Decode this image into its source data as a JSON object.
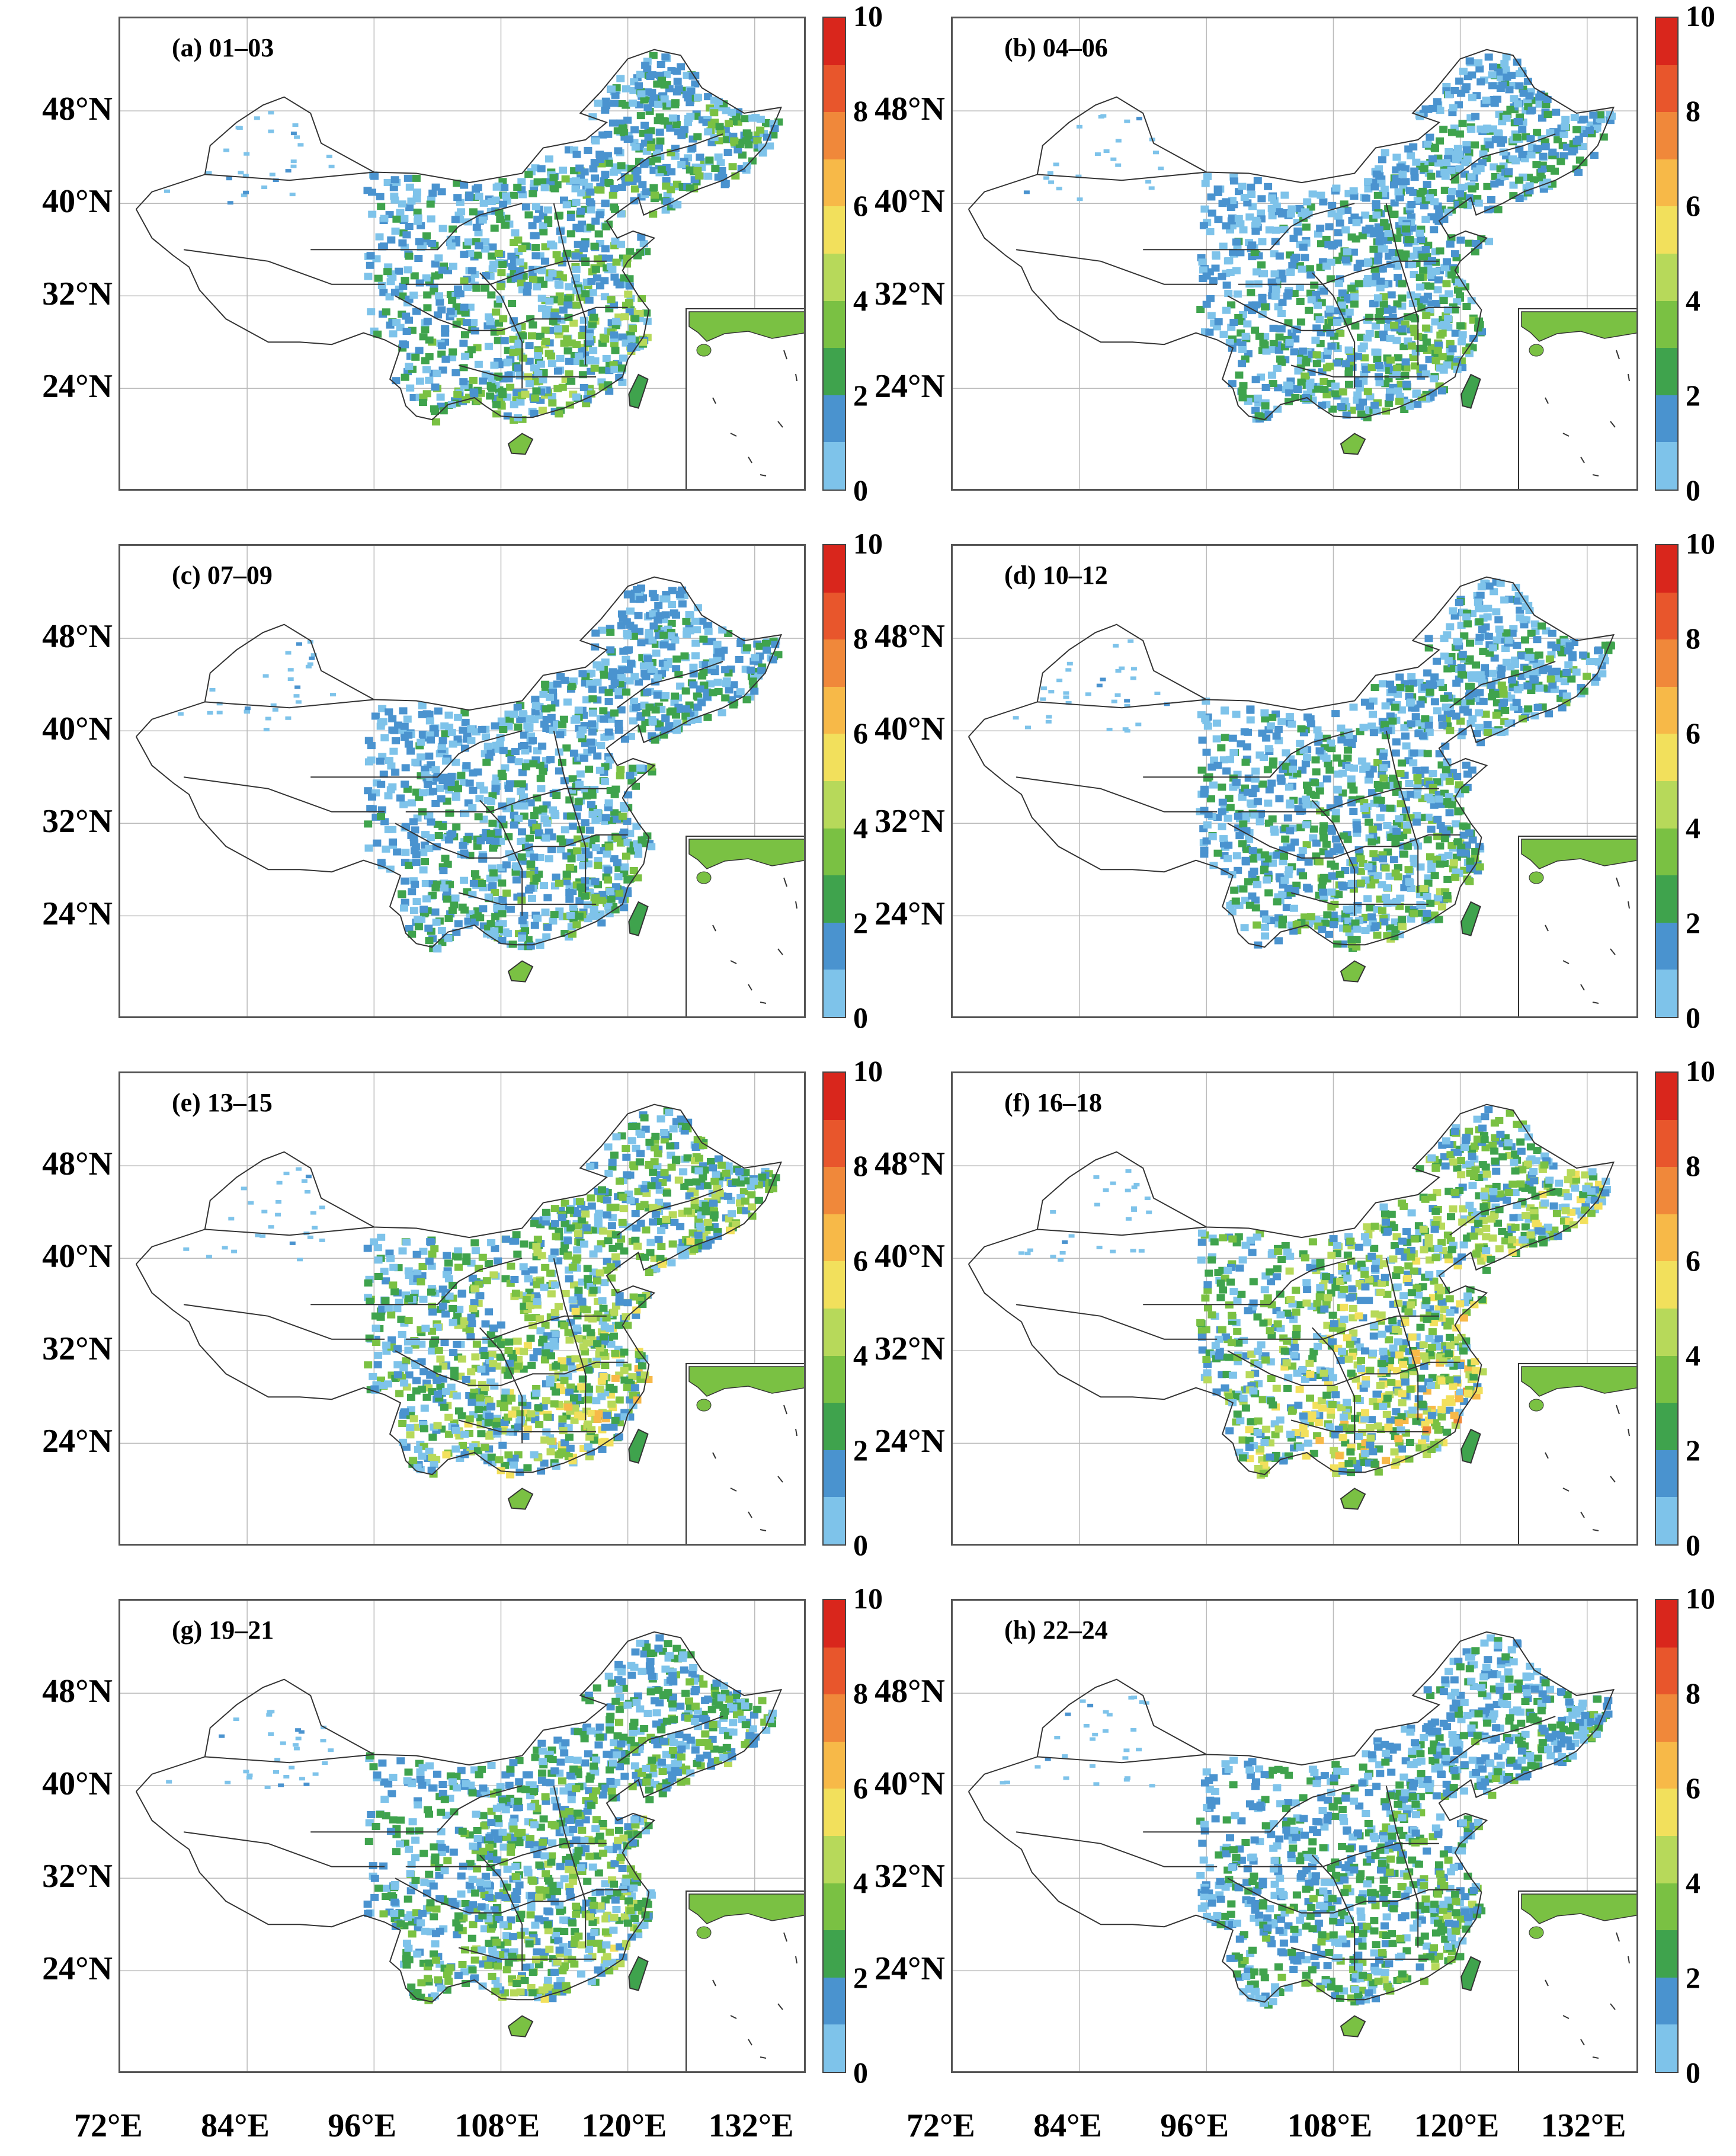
{
  "chart_data": {
    "type": "heatmap",
    "colorbar": {
      "ticks": [
        "0",
        "2",
        "4",
        "6",
        "8",
        "10"
      ],
      "range": [
        0,
        10
      ],
      "colors": [
        "#7ec3ea",
        "#4a93cf",
        "#3fa34d",
        "#7ac143",
        "#b7d95a",
        "#f2e05c",
        "#f7b948",
        "#f0883a",
        "#e8562c",
        "#d9261c"
      ]
    },
    "lat_ticks": [
      "48°N",
      "40°N",
      "32°N",
      "24°N"
    ],
    "lon_ticks": [
      "72°E",
      "84°E",
      "96°E",
      "108°E",
      "120°E",
      "132°E"
    ],
    "panels": [
      {
        "id": "a",
        "title": "(a) 01–03",
        "intensity": 0.55
      },
      {
        "id": "b",
        "title": "(b) 04–06",
        "intensity": 0.45
      },
      {
        "id": "c",
        "title": "(c) 07–09",
        "intensity": 0.45
      },
      {
        "id": "d",
        "title": "(d) 10–12",
        "intensity": 0.5
      },
      {
        "id": "e",
        "title": "(e) 13–15",
        "intensity": 0.75
      },
      {
        "id": "f",
        "title": "(f) 16–18",
        "intensity": 0.85
      },
      {
        "id": "g",
        "title": "(g) 19–21",
        "intensity": 0.6
      },
      {
        "id": "h",
        "title": "(h) 22–24",
        "intensity": 0.5
      }
    ]
  }
}
